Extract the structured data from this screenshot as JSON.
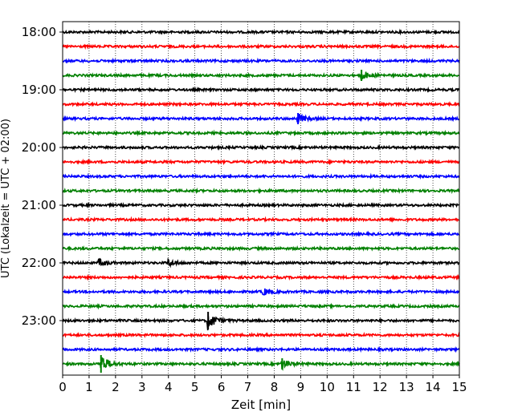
{
  "chart_data": {
    "type": "line",
    "title": "",
    "xlabel": "Zeit  [min]",
    "ylabel": "UTC (Lokalzeit = UTC + 02:00)",
    "xlim": [
      0,
      15
    ],
    "x_ticks": [
      "0",
      "1",
      "2",
      "3",
      "4",
      "5",
      "6",
      "7",
      "8",
      "9",
      "10",
      "11",
      "12",
      "13",
      "14",
      "15"
    ],
    "y_ticks": [
      "18:00",
      "19:00",
      "20:00",
      "21:00",
      "22:00",
      "23:00"
    ],
    "grid": "vertical dotted at each minute",
    "trace_interval_minutes": 15,
    "trace_start": "18:00",
    "trace_end": "23:45",
    "trace_colors": [
      "#000000",
      "#ff0000",
      "#0000ff",
      "#008000"
    ],
    "events": [
      {
        "trace": "18:45",
        "minute": 11.3,
        "amplitude": "medium"
      },
      {
        "trace": "19:30",
        "minute": 8.9,
        "amplitude": "medium"
      },
      {
        "trace": "22:00",
        "minute": 1.4,
        "amplitude": "small"
      },
      {
        "trace": "22:00",
        "minute": 4.0,
        "amplitude": "small"
      },
      {
        "trace": "22:30",
        "minute": 7.6,
        "amplitude": "small"
      },
      {
        "trace": "23:00",
        "minute": 5.5,
        "amplitude": "large"
      },
      {
        "trace": "23:45",
        "minute": 1.45,
        "amplitude": "large"
      },
      {
        "trace": "23:45",
        "minute": 8.3,
        "amplitude": "medium"
      }
    ]
  }
}
